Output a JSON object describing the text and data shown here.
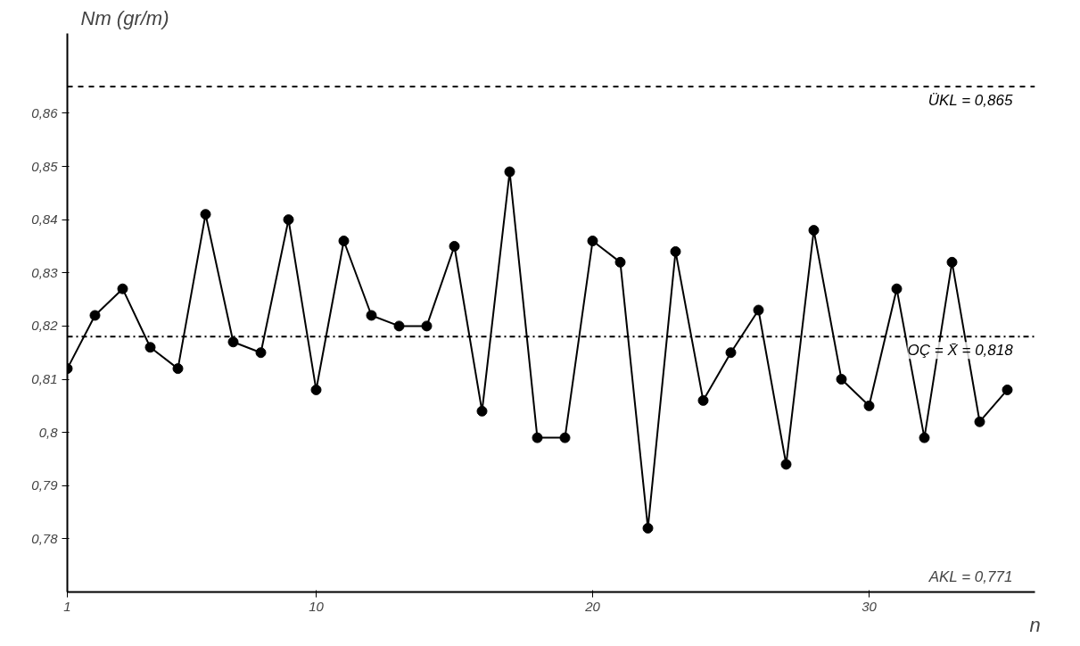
{
  "chart_data": {
    "type": "line",
    "ylabel": "Nm (gr/m)",
    "xlabel": "n",
    "x": [
      1,
      2,
      3,
      4,
      5,
      6,
      7,
      8,
      9,
      10,
      11,
      12,
      13,
      14,
      15,
      16,
      17,
      18,
      19,
      20,
      21,
      22,
      23,
      24,
      25,
      26,
      27,
      28,
      29,
      30,
      31,
      32,
      33,
      34,
      35
    ],
    "series": [
      {
        "color": "#000000",
        "values": [
          0.812,
          0.822,
          0.827,
          0.816,
          0.812,
          0.841,
          0.817,
          0.815,
          0.84,
          0.808,
          0.836,
          0.822,
          0.82,
          0.82,
          0.835,
          0.804,
          0.849,
          0.799,
          0.799,
          0.836,
          0.832,
          0.782,
          0.834,
          0.806,
          0.815,
          0.823,
          0.794,
          0.838,
          0.81,
          0.805,
          0.827,
          0.799,
          0.832,
          0.802,
          0.808
        ]
      }
    ],
    "xlim": [
      1,
      36
    ],
    "ylim": [
      0.77,
      0.875
    ],
    "xticks": [
      1,
      10,
      20,
      30
    ],
    "yticks": [
      {
        "value": 0.78,
        "label": "0,78"
      },
      {
        "value": 0.79,
        "label": "0,79"
      },
      {
        "value": 0.8,
        "label": "0,8"
      },
      {
        "value": 0.81,
        "label": "0,81"
      },
      {
        "value": 0.82,
        "label": "0,82"
      },
      {
        "value": 0.83,
        "label": "0,83"
      },
      {
        "value": 0.84,
        "label": "0,84"
      },
      {
        "value": 0.85,
        "label": "0,85"
      },
      {
        "value": 0.86,
        "label": "0,86"
      }
    ],
    "ref_lines": [
      {
        "axis": "y",
        "value": 0.865,
        "label": "ÜKL = 0,865",
        "color": "#000000",
        "line_style": "dashed"
      },
      {
        "axis": "y",
        "value": 0.818,
        "label": "OÇ = X̄ = 0,818",
        "color": "#000000",
        "line_style": "dashdot"
      }
    ],
    "annotations": [
      "AKL = 0,771"
    ],
    "marker": "circle",
    "line_style": "solid",
    "grid": false
  }
}
